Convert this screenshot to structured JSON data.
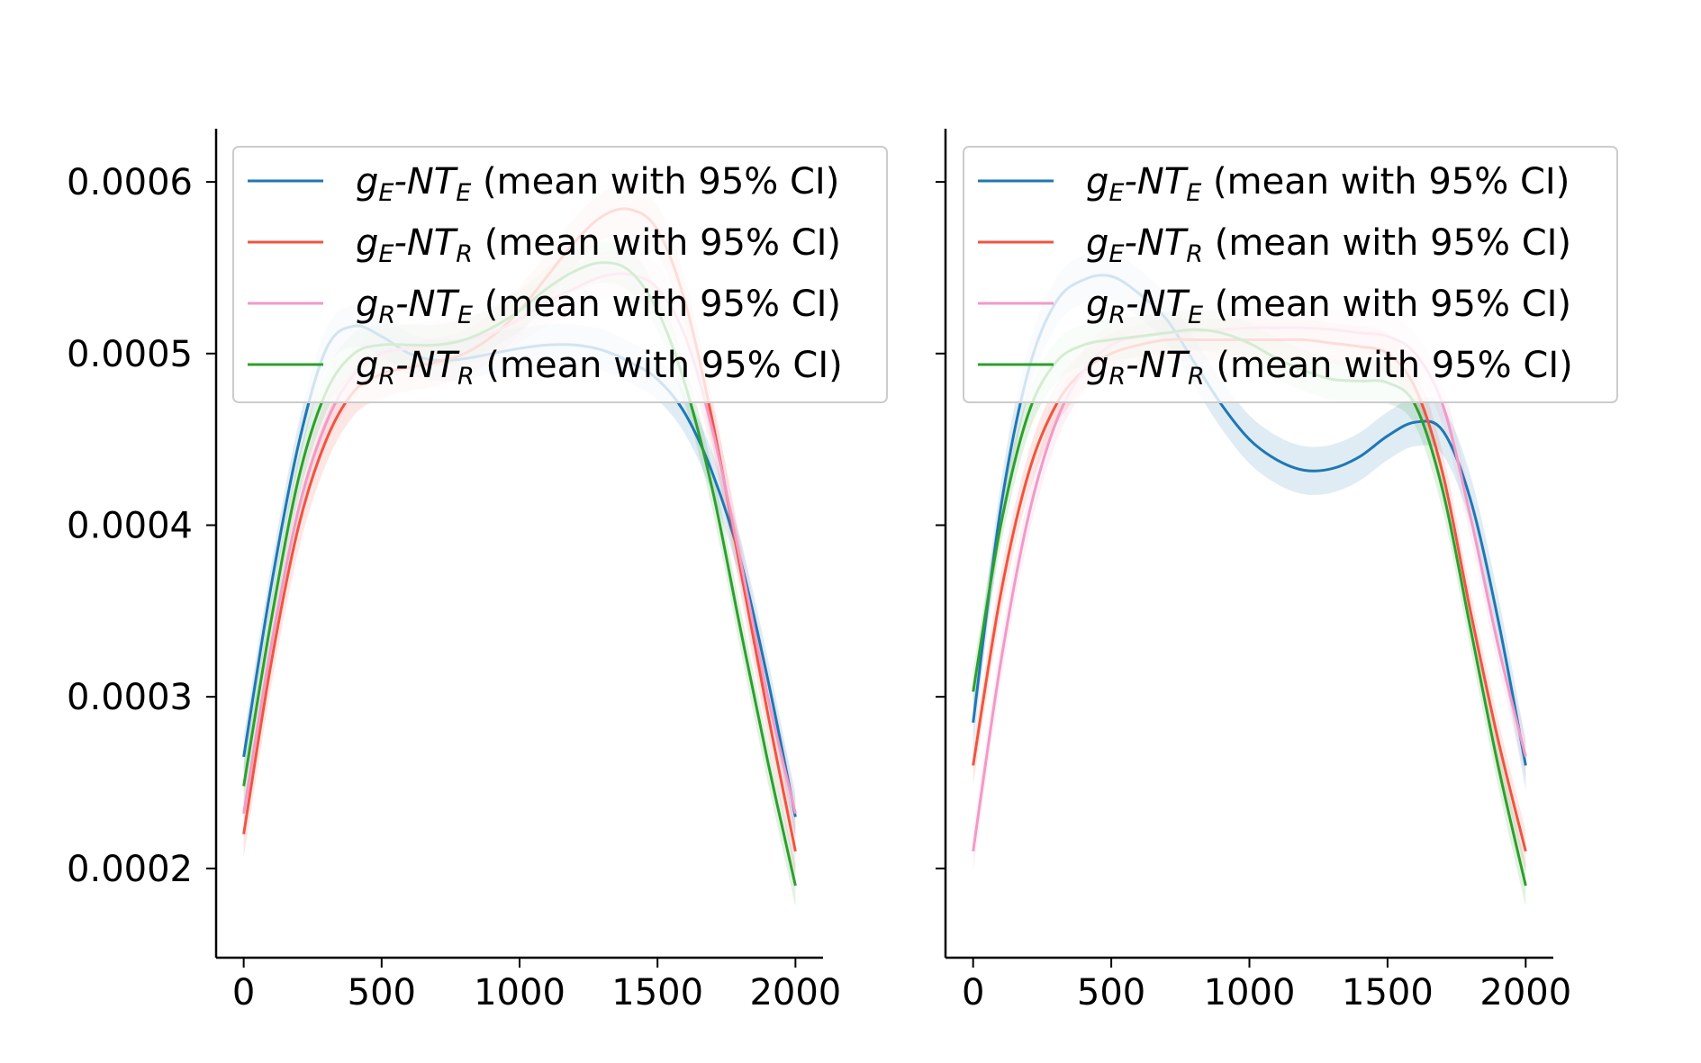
{
  "chart_data": [
    {
      "type": "line",
      "title": "",
      "xlabel": "",
      "ylabel": "",
      "xlim": [
        -100,
        2100
      ],
      "ylim": [
        0.000148,
        0.000631
      ],
      "xticks": [
        0,
        500,
        1000,
        1500,
        2000
      ],
      "xtick_labels": [
        "0",
        "500",
        "1000",
        "1500",
        "2000"
      ],
      "yticks": [
        0.0002,
        0.0003,
        0.0004,
        0.0005,
        0.0006
      ],
      "ytick_labels": [
        "0.0002",
        "0.0003",
        "0.0004",
        "0.0005",
        "0.0006"
      ],
      "grid": false,
      "legend_position": "top",
      "series": [
        {
          "name": "g_E-NT_E (mean with 95% CI)",
          "main": "g",
          "sub1": "E",
          "mid": "-NT",
          "sub2": "E",
          "suffix": " (mean with 95% CI)",
          "color": "#1f77b4",
          "x": [
            0,
            100,
            200,
            300,
            400,
            500,
            600,
            700,
            800,
            900,
            1000,
            1100,
            1200,
            1300,
            1400,
            1500,
            1600,
            1700,
            1800,
            1900,
            2000
          ],
          "y": [
            0.000265,
            0.000365,
            0.000448,
            0.000503,
            0.000516,
            0.00051,
            0.0005,
            0.000496,
            0.000497,
            0.0005,
            0.000503,
            0.000505,
            0.000505,
            0.000502,
            0.000495,
            0.000485,
            0.000465,
            0.00043,
            0.00038,
            0.00031,
            0.00023
          ],
          "ci": 1.2e-05
        },
        {
          "name": "g_E-NT_R (mean with 95% CI)",
          "main": "g",
          "sub1": "E",
          "mid": "-NT",
          "sub2": "R",
          "suffix": " (mean with 95% CI)",
          "color": "#ef5540",
          "x": [
            0,
            100,
            200,
            300,
            400,
            500,
            600,
            700,
            800,
            900,
            1000,
            1100,
            1200,
            1300,
            1400,
            1500,
            1600,
            1700,
            1800,
            1900,
            2000
          ],
          "y": [
            0.00022,
            0.00032,
            0.0004,
            0.00045,
            0.000478,
            0.000488,
            0.000492,
            0.000495,
            0.0005,
            0.00051,
            0.000525,
            0.000545,
            0.000565,
            0.00058,
            0.000584,
            0.000572,
            0.00053,
            0.00046,
            0.000375,
            0.00029,
            0.00021
          ],
          "ci": 1.4e-05
        },
        {
          "name": "g_R-NT_E (mean with 95% CI)",
          "main": "g",
          "sub1": "R",
          "mid": "-NT",
          "sub2": "E",
          "suffix": " (mean with 95% CI)",
          "color": "#f29ac7",
          "x": [
            0,
            100,
            200,
            300,
            400,
            500,
            600,
            700,
            800,
            900,
            1000,
            1100,
            1200,
            1300,
            1400,
            1500,
            1600,
            1700,
            1800,
            1900,
            2000
          ],
          "y": [
            0.000232,
            0.00033,
            0.00041,
            0.00046,
            0.000488,
            0.0005,
            0.000503,
            0.000505,
            0.000508,
            0.000512,
            0.00052,
            0.00053,
            0.000538,
            0.000545,
            0.000546,
            0.000538,
            0.00051,
            0.000455,
            0.00038,
            0.0003,
            0.000232
          ],
          "ci": 1.4e-05
        },
        {
          "name": "g_R-NT_R (mean with 95% CI)",
          "main": "g",
          "sub1": "R",
          "mid": "-NT",
          "sub2": "R",
          "suffix": " (mean with 95% CI)",
          "color": "#2ca02c",
          "x": [
            0,
            100,
            200,
            300,
            400,
            500,
            600,
            700,
            800,
            900,
            1000,
            1100,
            1200,
            1300,
            1400,
            1500,
            1600,
            1700,
            1800,
            1900,
            2000
          ],
          "y": [
            0.000248,
            0.000345,
            0.000428,
            0.000478,
            0.0005,
            0.000505,
            0.000505,
            0.000505,
            0.000508,
            0.000515,
            0.000525,
            0.000538,
            0.000548,
            0.000553,
            0.000548,
            0.000525,
            0.000482,
            0.00042,
            0.00034,
            0.000262,
            0.00019
          ],
          "ci": 1.2e-05
        }
      ]
    },
    {
      "type": "line",
      "title": "",
      "xlabel": "",
      "ylabel": "",
      "xlim": [
        -100,
        2100
      ],
      "ylim": [
        0.000148,
        0.000631
      ],
      "xticks": [
        0,
        500,
        1000,
        1500,
        2000
      ],
      "xtick_labels": [
        "0",
        "500",
        "1000",
        "1500",
        "2000"
      ],
      "yticks": [
        0.0002,
        0.0003,
        0.0004,
        0.0005,
        0.0006
      ],
      "ytick_labels": [],
      "grid": false,
      "legend_position": "top",
      "series": [
        {
          "name": "g_E-NT_E (mean with 95% CI)",
          "main": "g",
          "sub1": "E",
          "mid": "-NT",
          "sub2": "E",
          "suffix": " (mean with 95% CI)",
          "color": "#1f77b4",
          "x": [
            0,
            100,
            200,
            300,
            400,
            500,
            600,
            700,
            800,
            900,
            1000,
            1100,
            1200,
            1300,
            1400,
            1500,
            1600,
            1700,
            1800,
            1900,
            2000
          ],
          "y": [
            0.000285,
            0.00041,
            0.00049,
            0.00053,
            0.000543,
            0.000545,
            0.000535,
            0.00052,
            0.000495,
            0.00047,
            0.00045,
            0.000438,
            0.000432,
            0.000433,
            0.00044,
            0.000452,
            0.00046,
            0.000455,
            0.000415,
            0.000345,
            0.00026
          ],
          "ci": 1.4e-05
        },
        {
          "name": "g_E-NT_R (mean with 95% CI)",
          "main": "g",
          "sub1": "E",
          "mid": "-NT",
          "sub2": "R",
          "suffix": " (mean with 95% CI)",
          "color": "#ef5540",
          "x": [
            0,
            100,
            200,
            300,
            400,
            500,
            600,
            700,
            800,
            900,
            1000,
            1100,
            1200,
            1300,
            1400,
            1500,
            1600,
            1700,
            1800,
            1900,
            2000
          ],
          "y": [
            0.00026,
            0.00036,
            0.00043,
            0.00047,
            0.00049,
            0.0005,
            0.000505,
            0.000508,
            0.000508,
            0.000508,
            0.000508,
            0.000508,
            0.000508,
            0.000506,
            0.000504,
            0.0005,
            0.00048,
            0.00043,
            0.00035,
            0.000275,
            0.00021
          ],
          "ci": 1.2e-05
        },
        {
          "name": "g_R-NT_E (mean with 95% CI)",
          "main": "g",
          "sub1": "R",
          "mid": "-NT",
          "sub2": "E",
          "suffix": " (mean with 95% CI)",
          "color": "#f29ac7",
          "x": [
            0,
            100,
            200,
            300,
            400,
            500,
            600,
            700,
            800,
            900,
            1000,
            1100,
            1200,
            1300,
            1400,
            1500,
            1600,
            1700,
            1800,
            1900,
            2000
          ],
          "y": [
            0.00021,
            0.00032,
            0.000405,
            0.00046,
            0.00049,
            0.000505,
            0.00051,
            0.000512,
            0.000513,
            0.000514,
            0.000515,
            0.000515,
            0.000515,
            0.000514,
            0.000512,
            0.00051,
            0.0005,
            0.00047,
            0.000405,
            0.00033,
            0.000265
          ],
          "ci": 1.2e-05
        },
        {
          "name": "g_R-NT_R (mean with 95% CI)",
          "main": "g",
          "sub1": "R",
          "mid": "-NT",
          "sub2": "R",
          "suffix": " (mean with 95% CI)",
          "color": "#2ca02c",
          "x": [
            0,
            100,
            200,
            300,
            400,
            500,
            600,
            700,
            800,
            900,
            1000,
            1100,
            1200,
            1300,
            1400,
            1500,
            1600,
            1700,
            1800,
            1900,
            2000
          ],
          "y": [
            0.000303,
            0.0004,
            0.000465,
            0.000495,
            0.000505,
            0.000508,
            0.00051,
            0.000512,
            0.000514,
            0.000512,
            0.000506,
            0.000497,
            0.00049,
            0.000485,
            0.000484,
            0.000483,
            0.00047,
            0.00042,
            0.00034,
            0.00026,
            0.00019
          ],
          "ci": 1.2e-05
        }
      ]
    }
  ]
}
